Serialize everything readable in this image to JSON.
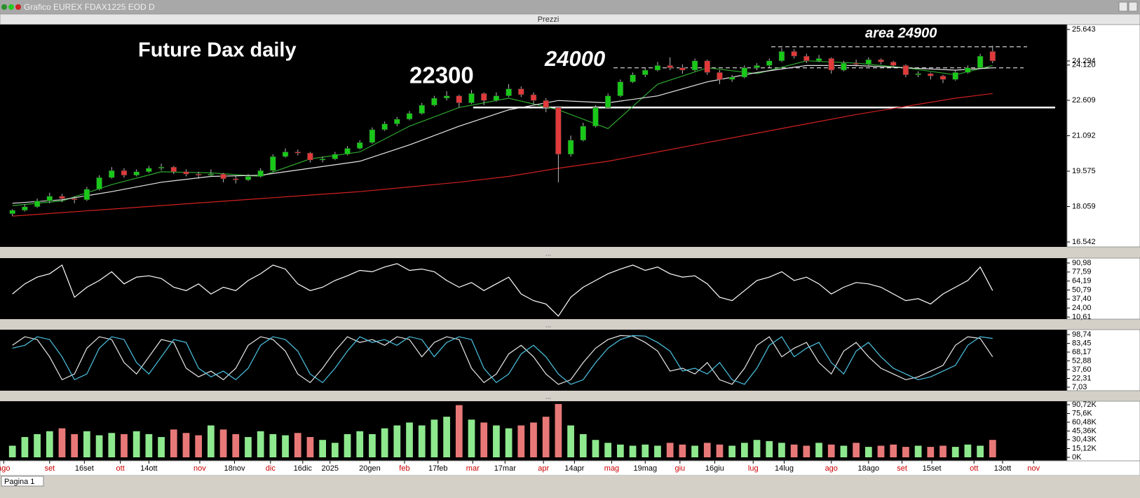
{
  "window": {
    "title": "Grafico EUREX FDAX1225 EOD D",
    "panel_label": "Prezzi",
    "tab": "Pagina 1"
  },
  "chart_data": [
    {
      "type": "candlestick",
      "title": "Future Dax daily",
      "annotations": [
        "22300",
        "24000",
        "area 24900"
      ],
      "up_color": "#19c819",
      "down_color": "#e03a3a",
      "xlim": [
        -1,
        85
      ],
      "ylim": [
        16542,
        25643
      ],
      "yticks": [
        {
          "value": 25643,
          "label": "25.643"
        },
        {
          "value": 24294,
          "label": "24.294"
        },
        {
          "value": 24120,
          "label": "24.120"
        },
        {
          "value": 22609,
          "label": "22.609"
        },
        {
          "value": 21092,
          "label": "21.092"
        },
        {
          "value": 19575,
          "label": "19.575"
        },
        {
          "value": 18059,
          "label": "18.059"
        },
        {
          "value": 16542,
          "label": "16.542"
        }
      ],
      "levels": [
        {
          "value": 22300,
          "style": "solid"
        },
        {
          "value": 24000,
          "style": "dashed"
        },
        {
          "value": 24900,
          "style": "dashed"
        }
      ],
      "candles": [
        [
          17750,
          17950,
          17650,
          17900
        ],
        [
          17900,
          18150,
          17850,
          18050
        ],
        [
          18050,
          18400,
          18000,
          18300
        ],
        [
          18300,
          18650,
          18200,
          18500
        ],
        [
          18500,
          18600,
          18250,
          18400
        ],
        [
          18400,
          18500,
          18200,
          18350
        ],
        [
          18350,
          18900,
          18300,
          18800
        ],
        [
          18800,
          19400,
          18750,
          19300
        ],
        [
          19300,
          19750,
          19250,
          19600
        ],
        [
          19600,
          19700,
          19300,
          19400
        ],
        [
          19400,
          19650,
          19350,
          19550
        ],
        [
          19550,
          19800,
          19500,
          19700
        ],
        [
          19700,
          19900,
          19600,
          19750
        ],
        [
          19750,
          19800,
          19450,
          19550
        ],
        [
          19550,
          19650,
          19350,
          19450
        ],
        [
          19450,
          19550,
          19250,
          19400
        ],
        [
          19400,
          19650,
          19350,
          19450
        ],
        [
          19450,
          19500,
          19100,
          19250
        ],
        [
          19250,
          19400,
          19050,
          19200
        ],
        [
          19200,
          19450,
          19150,
          19350
        ],
        [
          19350,
          19700,
          19300,
          19600
        ],
        [
          19600,
          20300,
          19550,
          20200
        ],
        [
          20200,
          20550,
          20150,
          20400
        ],
        [
          20400,
          20500,
          20250,
          20350
        ],
        [
          20350,
          20400,
          19950,
          20050
        ],
        [
          20050,
          20200,
          19950,
          20100
        ],
        [
          20100,
          20400,
          20050,
          20300
        ],
        [
          20300,
          20650,
          20250,
          20550
        ],
        [
          20550,
          20900,
          20500,
          20800
        ],
        [
          20800,
          21450,
          20750,
          21350
        ],
        [
          21350,
          21700,
          21300,
          21600
        ],
        [
          21600,
          21900,
          21500,
          21800
        ],
        [
          21800,
          22150,
          21750,
          22050
        ],
        [
          22050,
          22500,
          22000,
          22400
        ],
        [
          22400,
          22800,
          22350,
          22700
        ],
        [
          22700,
          23000,
          22600,
          22800
        ],
        [
          22800,
          22850,
          22300,
          22500
        ],
        [
          22500,
          23050,
          22450,
          22900
        ],
        [
          22900,
          22950,
          22400,
          22600
        ],
        [
          22600,
          22950,
          22550,
          22800
        ],
        [
          22800,
          23300,
          22750,
          23100
        ],
        [
          23100,
          23200,
          22750,
          22850
        ],
        [
          22850,
          22950,
          22450,
          22600
        ],
        [
          22600,
          22700,
          22100,
          22300
        ],
        [
          22300,
          22350,
          19100,
          20300
        ],
        [
          20300,
          21100,
          20200,
          20900
        ],
        [
          20900,
          21650,
          20850,
          21500
        ],
        [
          21500,
          22400,
          21450,
          22300
        ],
        [
          22300,
          22900,
          22250,
          22800
        ],
        [
          22800,
          23500,
          22750,
          23400
        ],
        [
          23400,
          23800,
          23350,
          23700
        ],
        [
          23700,
          24000,
          23600,
          23900
        ],
        [
          23900,
          24250,
          23850,
          24100
        ],
        [
          24100,
          24450,
          23900,
          24000
        ],
        [
          24000,
          24150,
          23750,
          23900
        ],
        [
          23900,
          24400,
          23850,
          24300
        ],
        [
          24300,
          24350,
          23700,
          23800
        ],
        [
          23800,
          23900,
          23300,
          23500
        ],
        [
          23500,
          23700,
          23400,
          23600
        ],
        [
          23600,
          24100,
          23550,
          24000
        ],
        [
          24000,
          24200,
          23900,
          24100
        ],
        [
          24100,
          24400,
          24000,
          24300
        ],
        [
          24300,
          24850,
          24250,
          24700
        ],
        [
          24700,
          24800,
          24400,
          24500
        ],
        [
          24500,
          24600,
          24200,
          24300
        ],
        [
          24300,
          24550,
          24250,
          24400
        ],
        [
          24400,
          24450,
          23750,
          23900
        ],
        [
          23900,
          24300,
          23850,
          24200
        ],
        [
          24200,
          24350,
          24050,
          24150
        ],
        [
          24150,
          24450,
          24100,
          24350
        ],
        [
          24350,
          24400,
          24150,
          24250
        ],
        [
          24250,
          24300,
          24000,
          24100
        ],
        [
          24100,
          24150,
          23600,
          23700
        ],
        [
          23700,
          23850,
          23600,
          23750
        ],
        [
          23750,
          23800,
          23500,
          23650
        ],
        [
          23650,
          23700,
          23350,
          23500
        ],
        [
          23500,
          23900,
          23450,
          23800
        ],
        [
          23800,
          24100,
          23750,
          24000
        ],
        [
          24000,
          24600,
          23950,
          24500
        ],
        [
          24700,
          24950,
          24200,
          24294
        ]
      ],
      "line_x": [
        0,
        4,
        8,
        12,
        16,
        20,
        24,
        28,
        32,
        36,
        40,
        44,
        48,
        52,
        56,
        60,
        64,
        68,
        72,
        76,
        79
      ],
      "lines": [
        {
          "color": "#2ea82e",
          "values": [
            18100,
            18300,
            19000,
            19550,
            19500,
            19350,
            20100,
            20400,
            21500,
            22300,
            22700,
            22200,
            21400,
            23300,
            24000,
            23750,
            24300,
            24200,
            24000,
            23700,
            24100
          ]
        },
        {
          "color": "#e8e8e8",
          "values": [
            18200,
            18350,
            18700,
            19100,
            19350,
            19400,
            19700,
            20000,
            20700,
            21500,
            22200,
            22600,
            22500,
            22800,
            23400,
            23800,
            24100,
            24100,
            24000,
            23900,
            24000
          ]
        },
        {
          "color": "#d02020",
          "values": [
            17650,
            17800,
            17950,
            18100,
            18250,
            18400,
            18550,
            18700,
            18900,
            19100,
            19350,
            19700,
            20000,
            20400,
            20800,
            21200,
            21600,
            22000,
            22350,
            22700,
            22900
          ]
        }
      ]
    },
    {
      "type": "line",
      "xlim": [
        -1,
        85
      ],
      "ylim": [
        10.61,
        90.98
      ],
      "color": "#ffffff",
      "yticks": [
        {
          "value": 90.98,
          "label": "90,98"
        },
        {
          "value": 77.59,
          "label": "77,59"
        },
        {
          "value": 64.19,
          "label": "64,19"
        },
        {
          "value": 50.79,
          "label": "50,79"
        },
        {
          "value": 37.4,
          "label": "37,40"
        },
        {
          "value": 24.0,
          "label": "24,00"
        },
        {
          "value": 10.61,
          "label": "10,61"
        }
      ],
      "values": [
        45,
        60,
        70,
        75,
        88,
        40,
        55,
        65,
        78,
        60,
        70,
        72,
        68,
        55,
        50,
        60,
        45,
        55,
        50,
        65,
        75,
        88,
        82,
        60,
        50,
        55,
        65,
        72,
        80,
        78,
        85,
        90,
        80,
        82,
        78,
        65,
        55,
        62,
        50,
        60,
        70,
        45,
        35,
        30,
        12,
        40,
        55,
        65,
        75,
        82,
        88,
        80,
        85,
        75,
        70,
        72,
        60,
        40,
        35,
        50,
        65,
        70,
        78,
        65,
        70,
        60,
        45,
        55,
        62,
        60,
        55,
        45,
        35,
        38,
        30,
        45,
        55,
        65,
        85,
        50
      ]
    },
    {
      "type": "line",
      "xlim": [
        -1,
        85
      ],
      "ylim": [
        7.03,
        98.74
      ],
      "yticks": [
        {
          "value": 98.74,
          "label": "98,74"
        },
        {
          "value": 83.45,
          "label": "83,45"
        },
        {
          "value": 68.17,
          "label": "68,17"
        },
        {
          "value": 52.88,
          "label": "52,88"
        },
        {
          "value": 37.6,
          "label": "37,60"
        },
        {
          "value": 22.31,
          "label": "22,31"
        },
        {
          "value": 7.03,
          "label": "7,03"
        }
      ],
      "series": [
        {
          "color": "#e8e8e8",
          "values": [
            80,
            95,
            90,
            60,
            20,
            30,
            75,
            95,
            90,
            50,
            30,
            60,
            90,
            85,
            40,
            25,
            35,
            20,
            40,
            80,
            95,
            90,
            70,
            30,
            15,
            40,
            70,
            95,
            85,
            90,
            80,
            95,
            90,
            60,
            85,
            95,
            90,
            40,
            15,
            30,
            65,
            80,
            60,
            30,
            12,
            20,
            50,
            75,
            90,
            97,
            96,
            85,
            70,
            35,
            40,
            30,
            50,
            20,
            12,
            40,
            80,
            95,
            60,
            75,
            85,
            50,
            30,
            70,
            85,
            60,
            40,
            30,
            20,
            25,
            35,
            45,
            80,
            95,
            92,
            60
          ]
        },
        {
          "color": "#4cc4e4",
          "values": [
            75,
            80,
            95,
            90,
            60,
            20,
            30,
            75,
            95,
            90,
            50,
            30,
            60,
            90,
            85,
            40,
            25,
            35,
            20,
            40,
            80,
            95,
            90,
            70,
            30,
            15,
            40,
            70,
            95,
            85,
            90,
            80,
            95,
            90,
            60,
            85,
            95,
            90,
            40,
            15,
            30,
            65,
            80,
            60,
            30,
            12,
            20,
            50,
            75,
            90,
            97,
            96,
            85,
            70,
            35,
            40,
            30,
            50,
            20,
            12,
            40,
            80,
            95,
            60,
            75,
            85,
            50,
            30,
            70,
            85,
            60,
            40,
            30,
            20,
            25,
            35,
            45,
            80,
            95,
            92
          ]
        }
      ]
    },
    {
      "type": "bar",
      "xlim": [
        -1,
        85
      ],
      "ylim": [
        0,
        90.72
      ],
      "up_color": "#8ee88e",
      "down_color": "#e87878",
      "yticks": [
        {
          "value": 90.72,
          "label": "90,72K"
        },
        {
          "value": 75.6,
          "label": "75,6K"
        },
        {
          "value": 60.48,
          "label": "60,48K"
        },
        {
          "value": 45.36,
          "label": "45,36K"
        },
        {
          "value": 30.43,
          "label": "30,43K"
        },
        {
          "value": 15.12,
          "label": "15,12K"
        },
        {
          "value": 0,
          "label": "0K"
        }
      ],
      "xticks": [
        {
          "value": -0.7,
          "label": "ago"
        },
        {
          "value": 3,
          "label": "set"
        },
        {
          "value": 5.8,
          "label": "16set"
        },
        {
          "value": 8.7,
          "label": "ott"
        },
        {
          "value": 11,
          "label": "14ott"
        },
        {
          "value": 15.1,
          "label": "nov"
        },
        {
          "value": 17.9,
          "label": "18nov"
        },
        {
          "value": 20.8,
          "label": "dic"
        },
        {
          "value": 23.4,
          "label": "16dic"
        },
        {
          "value": 25.6,
          "label": "2025"
        },
        {
          "value": 28.8,
          "label": "20gen"
        },
        {
          "value": 31.6,
          "label": "feb"
        },
        {
          "value": 34.3,
          "label": "17feb"
        },
        {
          "value": 37.1,
          "label": "mar"
        },
        {
          "value": 39.7,
          "label": "17mar"
        },
        {
          "value": 42.8,
          "label": "apr"
        },
        {
          "value": 45.3,
          "label": "14apr"
        },
        {
          "value": 48.3,
          "label": "mag"
        },
        {
          "value": 51,
          "label": "19mag"
        },
        {
          "value": 53.8,
          "label": "giu"
        },
        {
          "value": 56.6,
          "label": "16giu"
        },
        {
          "value": 59.7,
          "label": "lug"
        },
        {
          "value": 62.2,
          "label": "14lug"
        },
        {
          "value": 66,
          "label": "ago"
        },
        {
          "value": 69,
          "label": "18ago"
        },
        {
          "value": 71.7,
          "label": "set"
        },
        {
          "value": 74.1,
          "label": "15set"
        },
        {
          "value": 77.5,
          "label": "ott"
        },
        {
          "value": 79.8,
          "label": "13ott"
        },
        {
          "value": 82.3,
          "label": "nov"
        }
      ],
      "values": [
        20,
        35,
        40,
        45,
        50,
        40,
        45,
        38,
        42,
        40,
        45,
        40,
        35,
        48,
        42,
        38,
        55,
        48,
        40,
        35,
        45,
        40,
        38,
        42,
        35,
        30,
        25,
        40,
        45,
        40,
        50,
        55,
        60,
        55,
        65,
        70,
        90,
        65,
        60,
        55,
        50,
        55,
        60,
        70,
        92,
        55,
        40,
        30,
        25,
        22,
        20,
        22,
        20,
        25,
        22,
        20,
        25,
        22,
        20,
        25,
        30,
        28,
        25,
        22,
        20,
        25,
        22,
        20,
        25,
        18,
        20,
        22,
        18,
        20,
        18,
        20,
        18,
        22,
        20,
        30
      ]
    }
  ]
}
